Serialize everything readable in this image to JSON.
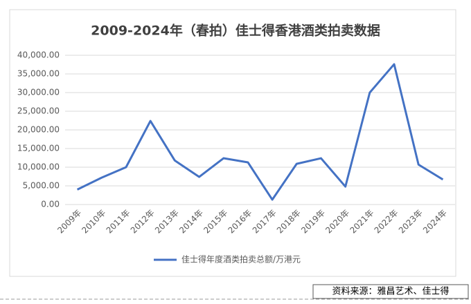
{
  "chart_data": {
    "type": "line",
    "title": "2009-2024年（春拍）佳士得香港酒类拍卖数据",
    "categories": [
      "2009年",
      "2010年",
      "2011年",
      "2012年",
      "2013年",
      "2014年",
      "2015年",
      "2016年",
      "2017年",
      "2018年",
      "2019年",
      "2020年",
      "2021年",
      "2022年",
      "2023年",
      "2024年"
    ],
    "series": [
      {
        "name": "佳士得年度酒类拍卖总额/万港元",
        "color": "#4472c4",
        "values": [
          4000,
          7200,
          10000,
          22400,
          11800,
          7400,
          12400,
          11300,
          1300,
          10900,
          12400,
          4800,
          30000,
          37600,
          10700,
          6700
        ]
      }
    ],
    "ylim": [
      0,
      40000
    ],
    "yticks": [
      {
        "value": 0,
        "label": "0.00"
      },
      {
        "value": 5000,
        "label": "5,000.00"
      },
      {
        "value": 10000,
        "label": "10,000.00"
      },
      {
        "value": 15000,
        "label": "15,000.00"
      },
      {
        "value": 20000,
        "label": "20,000.00"
      },
      {
        "value": 25000,
        "label": "25,000.00"
      },
      {
        "value": 30000,
        "label": "30,000.00"
      },
      {
        "value": 35000,
        "label": "35,000.00"
      },
      {
        "value": 40000,
        "label": "40,000.00"
      }
    ],
    "grid": true,
    "legend": "bottom",
    "source": "资料来源：雅昌艺术、佳士得"
  }
}
